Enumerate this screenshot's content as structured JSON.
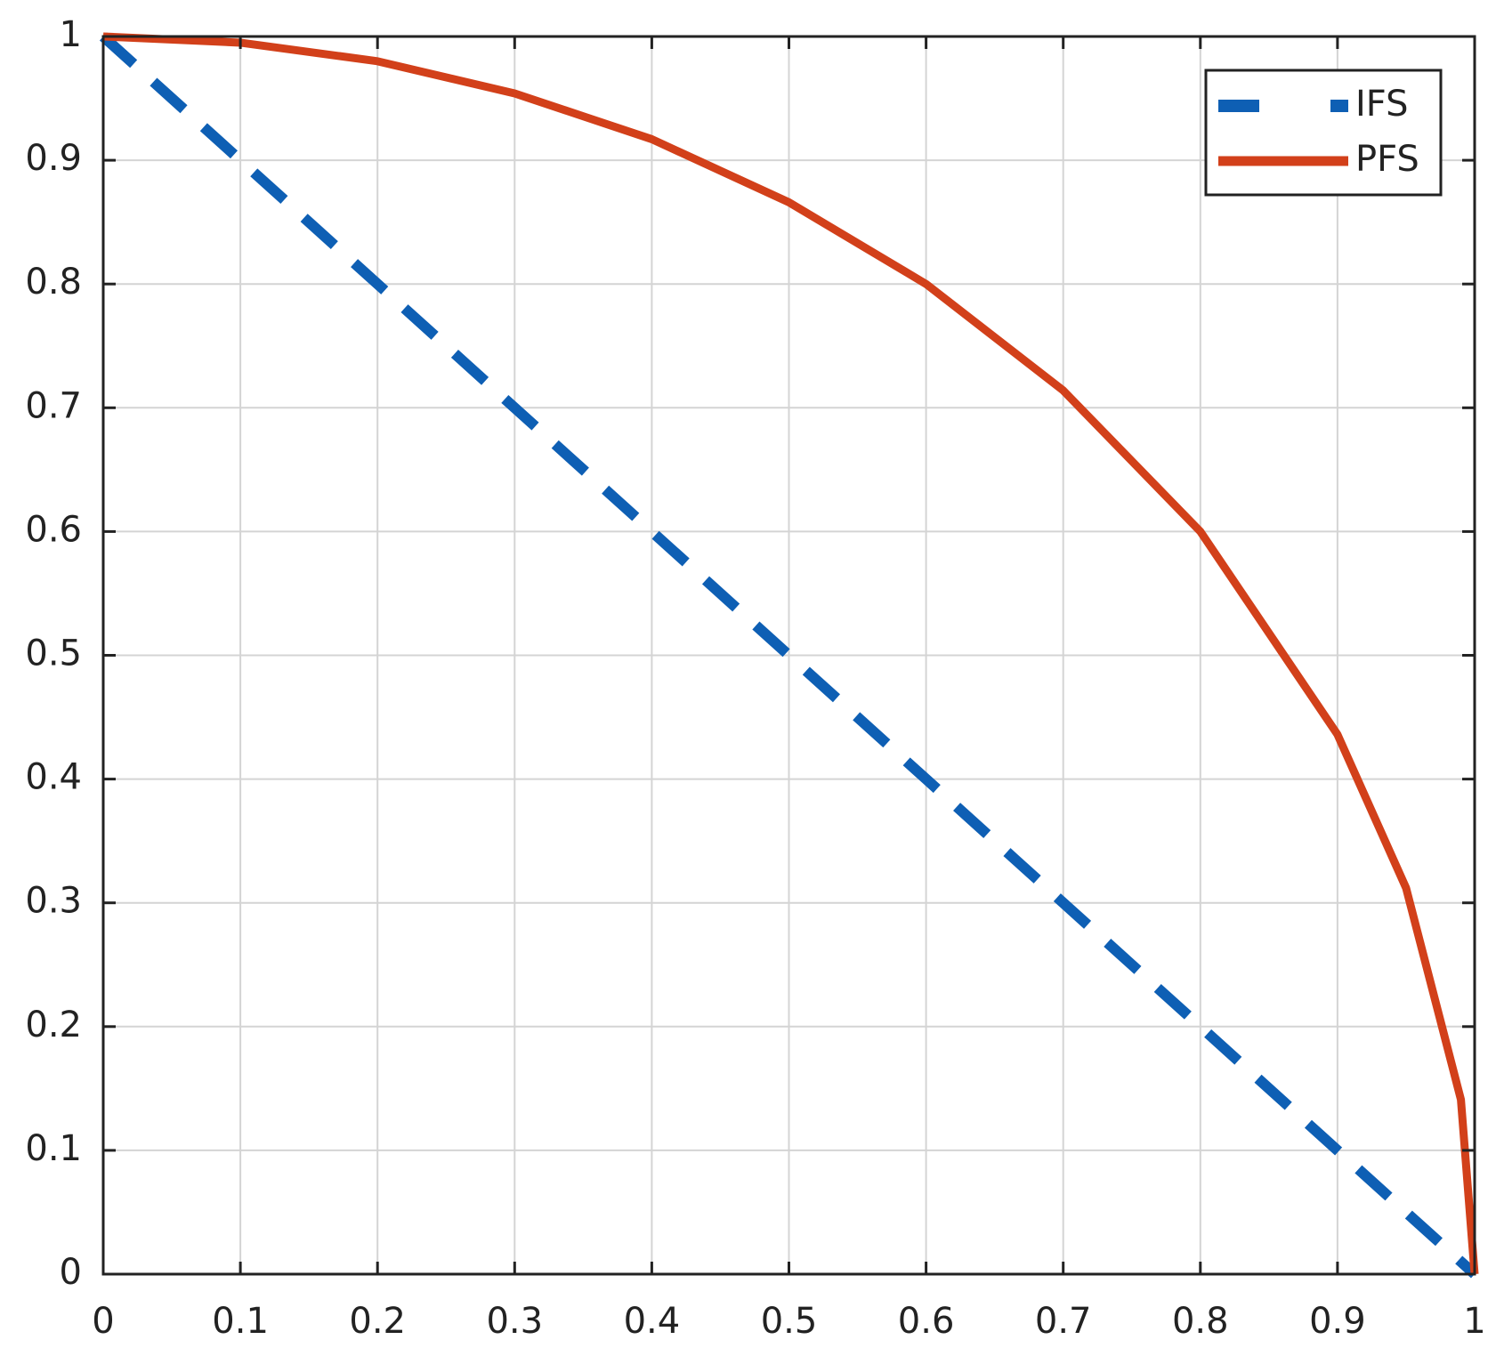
{
  "chart_data": {
    "type": "line",
    "x": [
      0,
      0.1,
      0.2,
      0.3,
      0.4,
      0.5,
      0.6,
      0.7,
      0.8,
      0.9,
      0.95,
      0.99,
      1
    ],
    "series": [
      {
        "name": "IFS",
        "color": "#0e5fb4",
        "dash": true,
        "values": [
          1,
          0.9,
          0.8,
          0.7,
          0.6,
          0.5,
          0.4,
          0.3,
          0.2,
          0.1,
          0.05,
          0.01,
          0
        ]
      },
      {
        "name": "PFS",
        "color": "#d2401a",
        "dash": false,
        "values": [
          1,
          0.995,
          0.98,
          0.954,
          0.917,
          0.866,
          0.8,
          0.714,
          0.6,
          0.436,
          0.312,
          0.141,
          0
        ]
      }
    ],
    "xlim": [
      0,
      1
    ],
    "ylim": [
      0,
      1
    ],
    "xticks": [
      0,
      0.1,
      0.2,
      0.3,
      0.4,
      0.5,
      0.6,
      0.7,
      0.8,
      0.9,
      1
    ],
    "yticks": [
      0,
      0.1,
      0.2,
      0.3,
      0.4,
      0.5,
      0.6,
      0.7,
      0.8,
      0.9,
      1
    ],
    "grid": true,
    "legend": "upper-right"
  }
}
